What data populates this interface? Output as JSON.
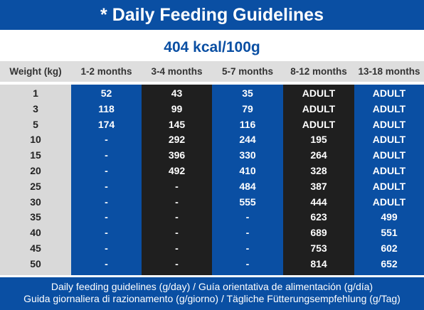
{
  "header": {
    "title": "* Daily Feeding Guidelines",
    "energy": "404 kcal/100g"
  },
  "table": {
    "columns": [
      "Weight (kg)",
      "1-2 months",
      "3-4 months",
      "5-7 months",
      "8-12 months",
      "13-18 months"
    ],
    "rows": [
      [
        1,
        52,
        43,
        35,
        "ADULT",
        "ADULT"
      ],
      [
        3,
        118,
        99,
        79,
        "ADULT",
        "ADULT"
      ],
      [
        5,
        174,
        145,
        116,
        "ADULT",
        "ADULT"
      ],
      [
        10,
        "-",
        292,
        244,
        195,
        "ADULT"
      ],
      [
        15,
        "-",
        396,
        330,
        264,
        "ADULT"
      ],
      [
        20,
        "-",
        492,
        410,
        328,
        "ADULT"
      ],
      [
        25,
        "-",
        "-",
        484,
        387,
        "ADULT"
      ],
      [
        30,
        "-",
        "-",
        555,
        444,
        "ADULT"
      ],
      [
        35,
        "-",
        "-",
        "-",
        623,
        499
      ],
      [
        40,
        "-",
        "-",
        "-",
        689,
        551
      ],
      [
        45,
        "-",
        "-",
        "-",
        753,
        602
      ],
      [
        50,
        "-",
        "-",
        "-",
        814,
        652
      ]
    ]
  },
  "footer": {
    "lines": [
      "Daily feeding guidelines (g/day) / Guía orientativa de alimentación (g/día)",
      "Guida giornaliera di razionamento (g/giorno) / Tägliche Fütterungsempfehlung (g/Tag)"
    ]
  }
}
